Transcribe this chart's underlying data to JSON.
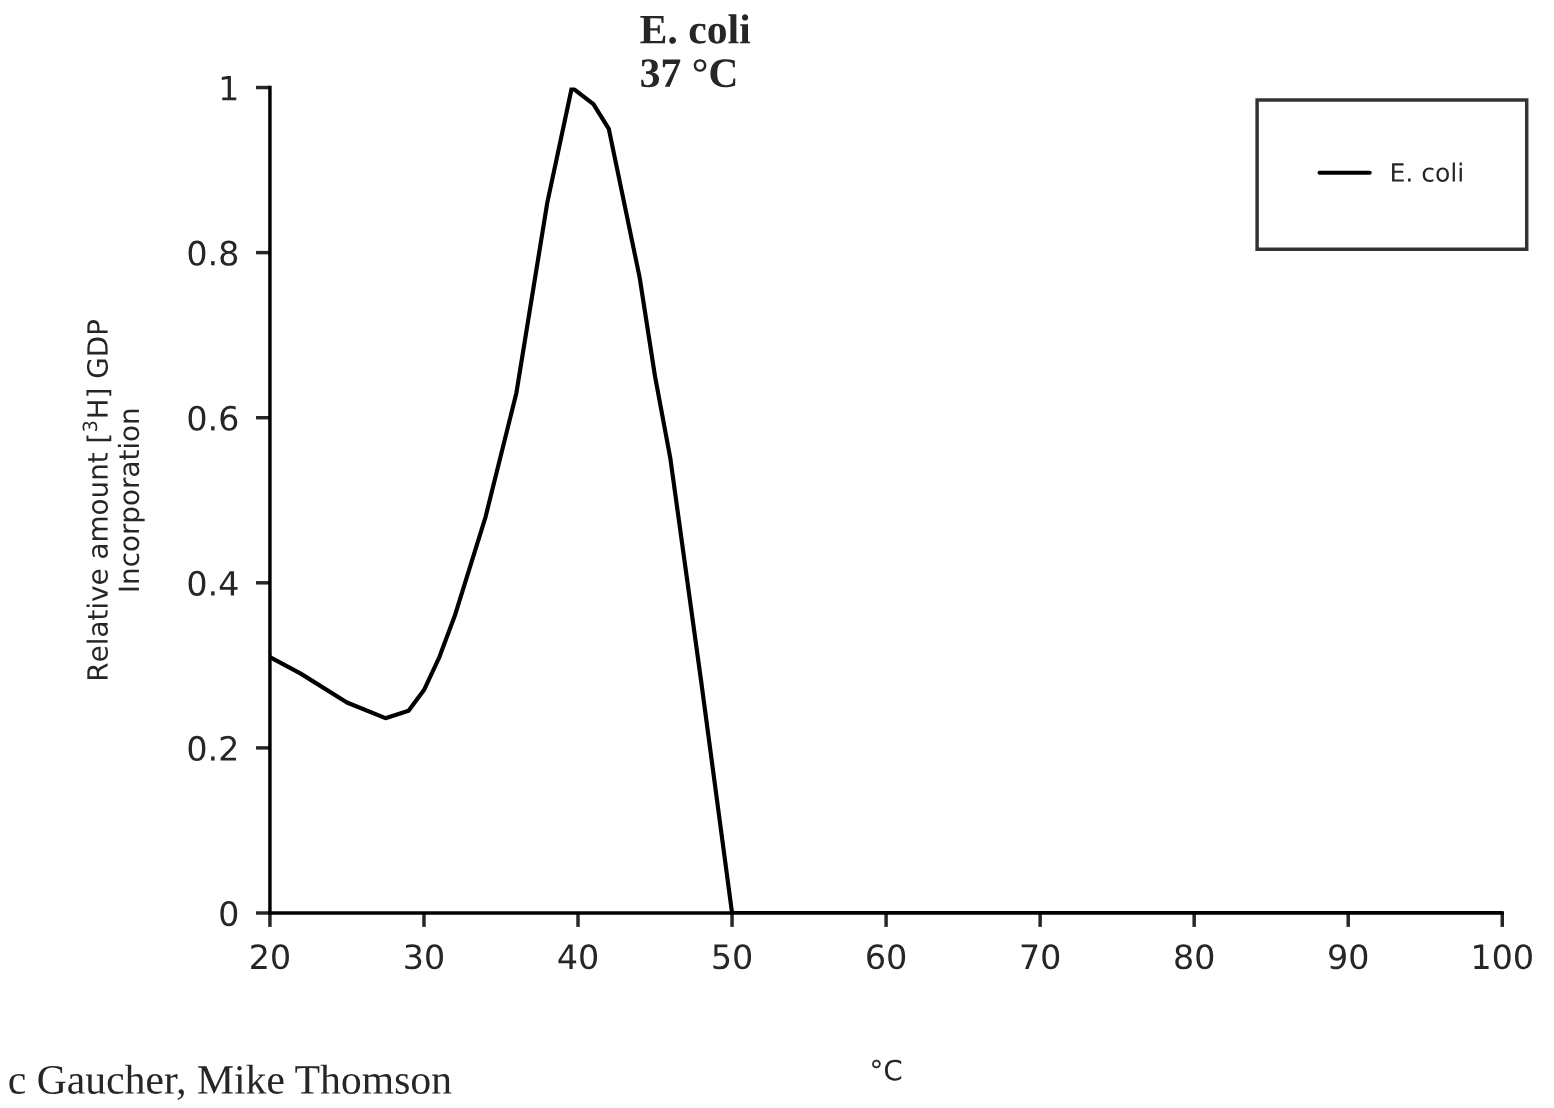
{
  "chart_data": {
    "type": "line",
    "title": "E. coli\n37 °C",
    "xlabel": "°C",
    "ylabel": "Relative amount [$^{3}$H] GDP\nIncorporation",
    "xlim": [
      20,
      100
    ],
    "xticks": [
      20,
      30,
      40,
      50,
      60,
      70,
      80,
      90,
      100
    ],
    "ylim": [
      0,
      1
    ],
    "yticks": [
      0,
      0.2,
      0.4,
      0.6,
      0.8,
      1
    ],
    "grid": false,
    "legend": "top right",
    "marker": "none",
    "line_style": "solid",
    "series": [
      {
        "name": "E. coli",
        "color": "#000000",
        "x": [
          20,
          22,
          25,
          27.5,
          29,
          30,
          31,
          32,
          34,
          36,
          38,
          39.6,
          41,
          42,
          44,
          45,
          46,
          48,
          50,
          60,
          70,
          80,
          90,
          100
        ],
        "values": [
          0.31,
          0.29,
          0.255,
          0.236,
          0.245,
          0.27,
          0.31,
          0.36,
          0.48,
          0.63,
          0.86,
          1.0,
          0.98,
          0.95,
          0.77,
          0.65,
          0.55,
          0.28,
          0,
          0,
          0,
          0,
          0,
          0
        ]
      }
    ],
    "annotations": [
      "c Gaucher, Mike Thomson"
    ]
  }
}
